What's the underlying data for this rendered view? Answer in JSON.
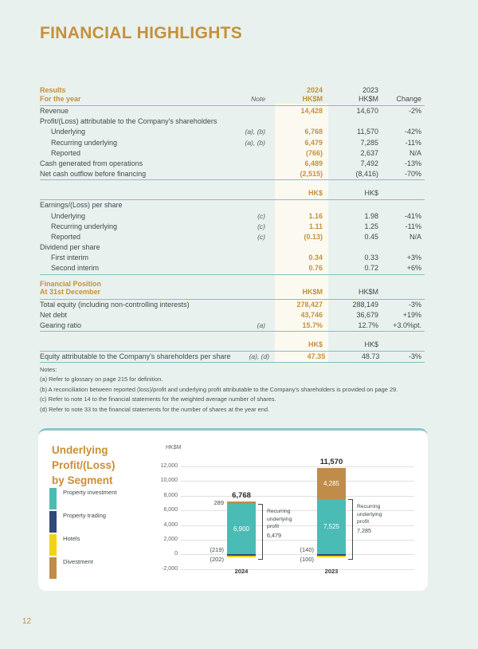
{
  "page": {
    "title": "FINANCIAL HIGHLIGHTS",
    "page_number": "12"
  },
  "colors": {
    "accent_gold": "#c5913b",
    "rule_teal": "#7ec1c3",
    "page_background": "#e9f1ee",
    "highlight_band": "#fcfaf0"
  },
  "table": {
    "header": {
      "section_line1": "Results",
      "section_line2": "For the year",
      "note": "Note",
      "y2024": "2024",
      "y2024_unit": "HK$M",
      "y2023": "2023",
      "y2023_unit": "HK$M",
      "change": "Change"
    },
    "rows": [
      {
        "type": "data",
        "label": "Revenue",
        "v2024": "14,428",
        "v2023": "14,670",
        "change": "-2%"
      },
      {
        "type": "group",
        "label": "Profit/(Loss) attributable to the Company's shareholders"
      },
      {
        "type": "data",
        "indent": true,
        "label": "Underlying",
        "note": "(a), (b)",
        "v2024": "6,768",
        "v2023": "11,570",
        "change": "-42%"
      },
      {
        "type": "data",
        "indent": true,
        "label": "Recurring underlying",
        "note": "(a), (b)",
        "v2024": "6,479",
        "v2023": "7,285",
        "change": "-11%"
      },
      {
        "type": "data",
        "indent": true,
        "label": "Reported",
        "v2024": "(766)",
        "v2023": "2,637",
        "change": "N/A"
      },
      {
        "type": "data",
        "label": "Cash generated from operations",
        "v2024": "6,489",
        "v2023": "7,492",
        "change": "-13%"
      },
      {
        "type": "data",
        "label": "Net cash outflow before financing",
        "v2024": "(2,515)",
        "v2023": "(8,416)",
        "change": "-70%"
      },
      {
        "type": "rule"
      },
      {
        "type": "subheader",
        "v2024": "HK$",
        "v2023": "HK$"
      },
      {
        "type": "rule"
      },
      {
        "type": "group",
        "label": "Earnings/(Loss) per share"
      },
      {
        "type": "data",
        "indent": true,
        "label": "Underlying",
        "note": "(c)",
        "v2024": "1.16",
        "v2023": "1.98",
        "change": "-41%"
      },
      {
        "type": "data",
        "indent": true,
        "label": "Recurring underlying",
        "note": "(c)",
        "v2024": "1.11",
        "v2023": "1.25",
        "change": "-11%"
      },
      {
        "type": "data",
        "indent": true,
        "label": "Reported",
        "note": "(c)",
        "v2024": "(0.13)",
        "v2023": "0.45",
        "change": "N/A"
      },
      {
        "type": "group",
        "label": "Dividend per share"
      },
      {
        "type": "data",
        "indent": true,
        "label": "First interim",
        "v2024": "0.34",
        "v2023": "0.33",
        "change": "+3%"
      },
      {
        "type": "data",
        "indent": true,
        "label": "Second interim",
        "v2024": "0.76",
        "v2023": "0.72",
        "change": "+6%"
      },
      {
        "type": "rule"
      },
      {
        "type": "sectionhead",
        "label_line1": "Financial Position",
        "label_line2": "At 31st December",
        "v2024": "HK$M",
        "v2023": "HK$M"
      },
      {
        "type": "rule"
      },
      {
        "type": "data",
        "label": "Total equity (including non-controlling interests)",
        "v2024": "278,427",
        "v2023": "288,149",
        "change": "-3%"
      },
      {
        "type": "data",
        "label": "Net debt",
        "v2024": "43,746",
        "v2023": "36,679",
        "change": "+19%"
      },
      {
        "type": "data",
        "label": "Gearing ratio",
        "note": "(a)",
        "v2024": "15.7%",
        "v2023": "12.7%",
        "change": "+3.0%pt."
      },
      {
        "type": "rule"
      },
      {
        "type": "subheader",
        "v2024": "HK$",
        "v2023": "HK$"
      },
      {
        "type": "rule"
      },
      {
        "type": "data",
        "label": "Equity attributable to the Company's shareholders per share",
        "note": "(a), (d)",
        "v2024": "47.35",
        "v2023": "48.73",
        "change": "-3%"
      },
      {
        "type": "rule"
      }
    ]
  },
  "notes": {
    "heading": "Notes:",
    "items": [
      "(a) Refer to glossary on page 215 for definition.",
      "(b) A reconciliation between reported (loss)/profit and underlying profit attributable to the Company's shareholders is provided on page 29.",
      "(c) Refer to note 14 to the financial statements for the weighted average number of shares.",
      "(d) Refer to note 33 to the financial statements for the number of shares at the year end."
    ]
  },
  "chart_data": {
    "type": "bar",
    "stacked": true,
    "title_lines": [
      "Underlying",
      "Profit/(Loss)",
      "by Segment"
    ],
    "unit_label": "HK$M",
    "ylim": [
      -2000,
      12000
    ],
    "ytick_step": 2000,
    "ytick_values": [
      12000,
      10000,
      8000,
      6000,
      4000,
      2000,
      0,
      -2000
    ],
    "ytick_labels": [
      "12,000",
      "10,000",
      "8,000",
      "6,000",
      "4,000",
      "2,000",
      "0",
      "-2,000"
    ],
    "grid": true,
    "legend_position": "left",
    "segment_colors": {
      "property-investment": "#4bbcb5",
      "property-trading": "#2e4a78",
      "hotels": "#f2d310",
      "divestment": "#c08c49"
    },
    "legend": [
      {
        "key": "property-investment",
        "label": "Property investment"
      },
      {
        "key": "property-trading",
        "label": "Property trading"
      },
      {
        "key": "hotels",
        "label": "Hotels"
      },
      {
        "key": "divestment",
        "label": "Divestment"
      }
    ],
    "categories": [
      "2024",
      "2023"
    ],
    "bars": [
      {
        "category": "2024",
        "total_label": "6,768",
        "segments": [
          {
            "segment": "property-investment",
            "value": 6900,
            "label": "6,900",
            "label_pos": "inside"
          },
          {
            "segment": "divestment",
            "value": 289,
            "label": "289",
            "label_pos": "left"
          },
          {
            "segment": "property-trading",
            "value": -219,
            "label": "(219)",
            "label_pos": "left"
          },
          {
            "segment": "hotels",
            "value": -202,
            "label": "(202)",
            "label_pos": "left"
          }
        ],
        "bracket": {
          "lines": [
            "Recurring",
            "underlying",
            "profit"
          ],
          "value": "6,479"
        }
      },
      {
        "category": "2023",
        "total_label": "11,570",
        "segments": [
          {
            "segment": "property-investment",
            "value": 7525,
            "label": "7,525",
            "label_pos": "inside"
          },
          {
            "segment": "divestment",
            "value": 4285,
            "label": "4,285",
            "label_pos": "inside"
          },
          {
            "segment": "property-trading",
            "value": -140,
            "label": "(140)",
            "label_pos": "left"
          },
          {
            "segment": "hotels",
            "value": -100,
            "label": "(100)",
            "label_pos": "left"
          }
        ],
        "bracket": {
          "lines": [
            "Recurring",
            "underlying",
            "profit"
          ],
          "value": "7,285"
        }
      }
    ]
  }
}
